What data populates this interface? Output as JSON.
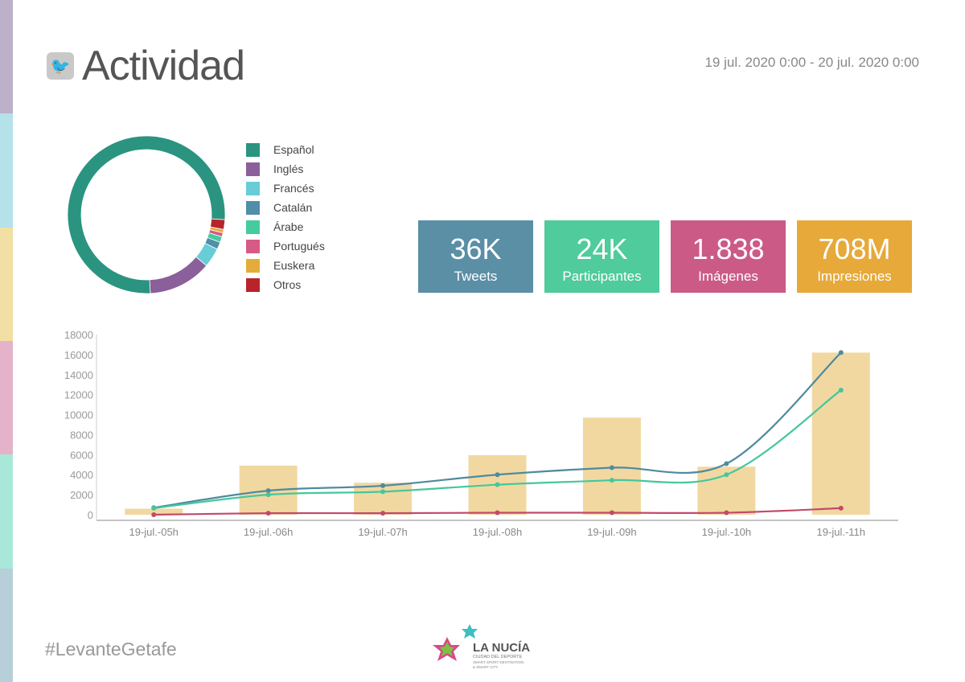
{
  "header": {
    "title": "Actividad",
    "icon": "twitter-icon",
    "date_range": "19 jul. 2020 0:00 - 20 jul. 2020 0:00"
  },
  "strip_colors": [
    "#bcb1c9",
    "#b5e1ea",
    "#f2dfa3",
    "#e5b3c9",
    "#a9e8d8",
    "#b6cfd9"
  ],
  "languages": {
    "items": [
      {
        "label": "Español",
        "color": "#2a9480",
        "percent": 76.8
      },
      {
        "label": "Inglés",
        "color": "#8a5f9a",
        "percent": 13
      },
      {
        "label": "Francés",
        "color": "#68cdd6",
        "percent": 4
      },
      {
        "label": "Catalán",
        "color": "#4f8fa8",
        "percent": 1.5
      },
      {
        "label": "Árabe",
        "color": "#45cba0",
        "percent": 1.2
      },
      {
        "label": "Portugués",
        "color": "#d55a86",
        "percent": 0.8
      },
      {
        "label": "Euskera",
        "color": "#e4ad3a",
        "percent": 0.7
      },
      {
        "label": "Otros",
        "color": "#b8242a",
        "percent": 3
      }
    ]
  },
  "kpis": [
    {
      "value": "36K",
      "label": "Tweets",
      "color": "#5a8fa6"
    },
    {
      "value": "24K",
      "label": "Participantes",
      "color": "#4fcb9c"
    },
    {
      "value": "1.838",
      "label": "Imágenes",
      "color": "#cb5a86"
    },
    {
      "value": "708M",
      "label": "Impresiones",
      "color": "#e6a93a"
    }
  ],
  "chart_data": {
    "type": "bar+line",
    "categories": [
      "19-jul.-05h",
      "19-jul.-06h",
      "19-jul.-07h",
      "19-jul.-08h",
      "19-jul.-09h",
      "19-jul.-10h",
      "19-jul.-11h"
    ],
    "ylim": [
      0,
      18000
    ],
    "yticks": [
      0,
      2000,
      4000,
      6000,
      8000,
      10000,
      12000,
      14000,
      16000,
      18000
    ],
    "bars": {
      "color": "#efd497",
      "values": [
        600,
        4900,
        3200,
        5950,
        9700,
        4800,
        16200
      ]
    },
    "series": [
      {
        "color": "#4f8aa0",
        "values": [
          700,
          2400,
          2900,
          4000,
          4700,
          5100,
          16200
        ]
      },
      {
        "color": "#45c79c",
        "values": [
          650,
          2000,
          2300,
          3000,
          3450,
          4000,
          12450
        ]
      },
      {
        "color": "#c24a6a",
        "values": [
          0,
          150,
          150,
          200,
          200,
          200,
          650
        ]
      }
    ],
    "grid": false
  },
  "footer": {
    "hashtag": "#LevanteGetafe",
    "logo_text": "LA NUCÍA",
    "logo_sub1": "CIUDAD DEL DEPORTE",
    "logo_sub2": "SMART SPORT DESTINATION",
    "logo_sub3": "& SMART CITY"
  }
}
